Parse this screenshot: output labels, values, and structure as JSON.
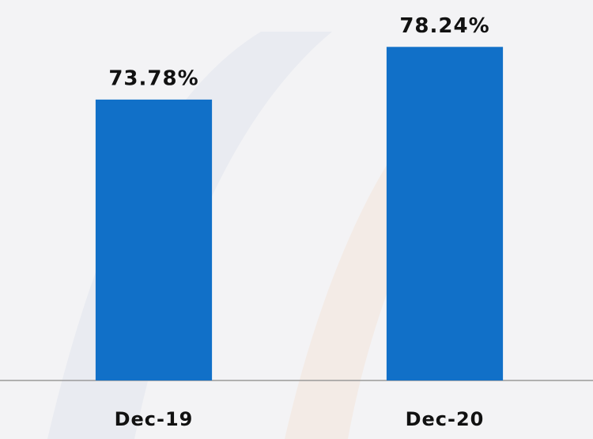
{
  "chart_data": {
    "type": "bar",
    "categories": [
      "Dec-19",
      "Dec-20"
    ],
    "values": [
      73.78,
      78.24
    ],
    "value_labels": [
      "73.78%",
      "78.24%"
    ],
    "color": "#1170c8",
    "ylim": [
      50,
      80
    ]
  }
}
